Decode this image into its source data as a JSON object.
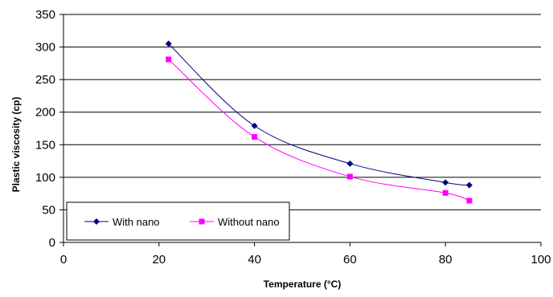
{
  "chart_data": {
    "type": "line",
    "title": "",
    "xlabel": "Temperature (°C)",
    "ylabel": "Plastic viscosity (cp)",
    "xlim": [
      0,
      100
    ],
    "ylim": [
      0,
      350
    ],
    "xticks": [
      0,
      20,
      40,
      60,
      80,
      100
    ],
    "yticks": [
      0,
      50,
      100,
      150,
      200,
      250,
      300,
      350
    ],
    "grid": "horizontal",
    "legend_position": "bottom-left",
    "series": [
      {
        "name": "With nano",
        "color": "#000080",
        "marker": "diamond",
        "x": [
          22,
          40,
          60,
          80,
          85
        ],
        "y": [
          305,
          179,
          121,
          92,
          88
        ]
      },
      {
        "name": "Without nano",
        "color": "#ff00ff",
        "marker": "square",
        "x": [
          22,
          40,
          60,
          80,
          85
        ],
        "y": [
          281,
          162,
          101,
          76,
          64
        ]
      }
    ]
  }
}
